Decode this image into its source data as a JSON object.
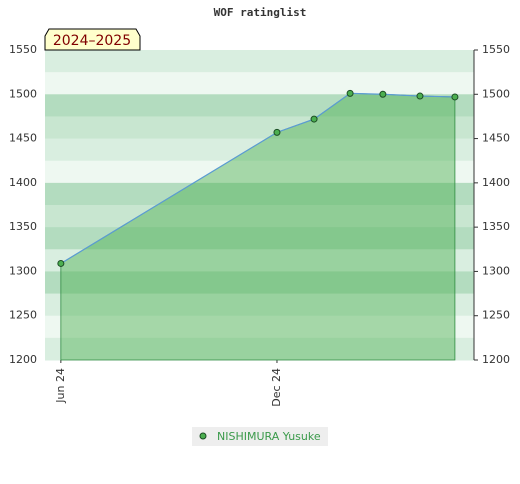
{
  "chart_data": {
    "type": "area-line",
    "title": "WOF ratinglist",
    "badge": "2024–2025",
    "x": [
      0,
      6,
      7.03,
      8.03,
      8.94,
      9.97,
      10.94
    ],
    "xlim": [
      -0.44,
      11.47
    ],
    "xticks": [
      {
        "value": 0,
        "label": "Jun 24"
      },
      {
        "value": 6,
        "label": "Dec 24"
      }
    ],
    "series": [
      {
        "name": "NISHIMURA Yusuke",
        "color": "#4caf50",
        "values": [
          1309,
          1457,
          1472,
          1501,
          1500,
          1498,
          1497
        ]
      }
    ],
    "ylim": [
      1200,
      1550
    ],
    "yticks": [
      1200,
      1250,
      1300,
      1350,
      1400,
      1450,
      1500,
      1550
    ],
    "grid": true
  }
}
